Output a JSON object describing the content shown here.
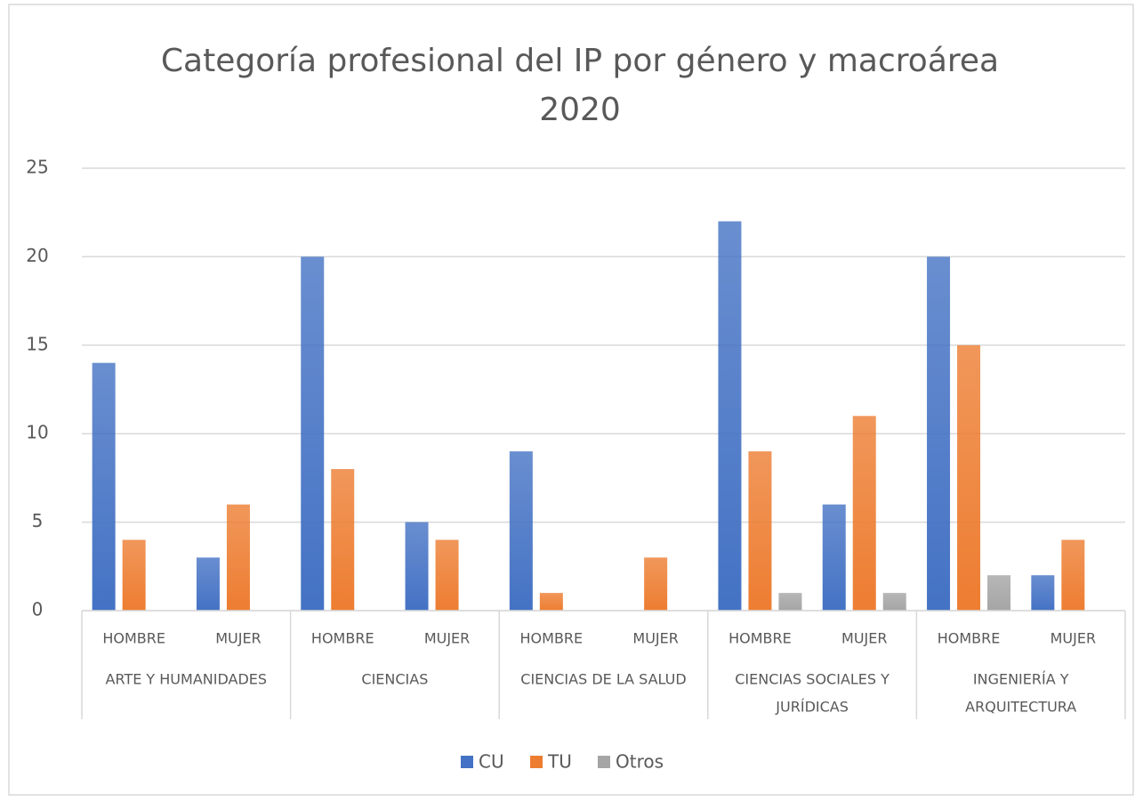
{
  "chart_data": {
    "type": "bar",
    "title": [
      "Categoría profesional del IP por género y macroárea",
      "2020"
    ],
    "categories": [
      "HOMBRE",
      "MUJER",
      "HOMBRE",
      "MUJER",
      "HOMBRE",
      "MUJER",
      "HOMBRE",
      "MUJER",
      "HOMBRE",
      "MUJER"
    ],
    "groups": [
      [
        "ARTE Y HUMANIDADES"
      ],
      [
        "CIENCIAS"
      ],
      [
        "CIENCIAS DE LA SALUD"
      ],
      [
        "CIENCIAS SOCIALES Y",
        "JURÍDICAS"
      ],
      [
        "INGENIERÍA Y",
        "ARQUITECTURA"
      ]
    ],
    "series": [
      {
        "name": "CU",
        "color": "#4472c4",
        "values": [
          14,
          3,
          20,
          5,
          9,
          null,
          22,
          6,
          20,
          2
        ]
      },
      {
        "name": "TU",
        "color": "#ed7d31",
        "values": [
          4,
          6,
          8,
          4,
          1,
          3,
          9,
          11,
          15,
          4
        ]
      },
      {
        "name": "Otros",
        "color": "#a5a5a5",
        "values": [
          null,
          null,
          null,
          null,
          null,
          null,
          1,
          1,
          2,
          null
        ]
      }
    ],
    "ylim": [
      0,
      25
    ],
    "yticks": [
      0,
      5,
      10,
      15,
      20,
      25
    ],
    "grid": true,
    "legend": "bottom"
  }
}
